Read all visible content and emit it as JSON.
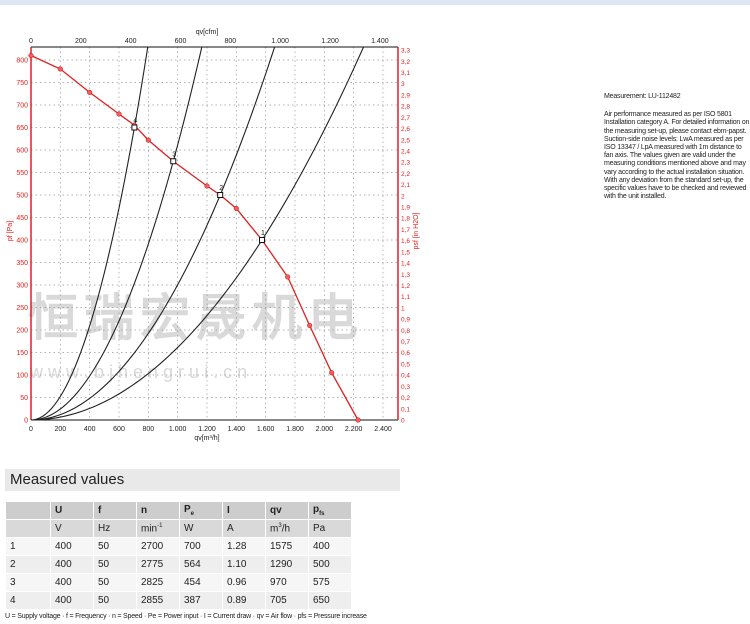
{
  "chart_data": {
    "type": "line",
    "x_label_bottom": "qv[m³/h]",
    "x_label_top": "qv[cfm]",
    "y_label_left": "pf [Pa]",
    "y_label_right": "psf [in H2O]",
    "xlim": [
      0,
      2500
    ],
    "ylim": [
      0,
      830
    ],
    "x_ticks_bottom": [
      "0",
      "200",
      "400",
      "600",
      "800",
      "1.000",
      "1.200",
      "1.400",
      "1.600",
      "1.800",
      "2.000",
      "2.200",
      "2.400"
    ],
    "x_ticks_top": [
      "0",
      "200",
      "400",
      "600",
      "800",
      "1.000",
      "1.200",
      "1.400"
    ],
    "y_ticks_left": [
      "0",
      "50",
      "100",
      "150",
      "200",
      "250",
      "300",
      "350",
      "400",
      "450",
      "500",
      "550",
      "600",
      "650",
      "700",
      "750",
      "800"
    ],
    "y_ticks_right": [
      "0",
      "0,1",
      "0,2",
      "0,3",
      "0,4",
      "0,5",
      "0,6",
      "0,7",
      "0,8",
      "0,9",
      "1",
      "1,1",
      "1,2",
      "1,3",
      "1,4",
      "1,5",
      "1,6",
      "1,7",
      "1,8",
      "1,9",
      "2",
      "2,1",
      "2,2",
      "2,3",
      "2,4",
      "2,5",
      "2,6",
      "2,7",
      "2,8",
      "2,9",
      "3",
      "3,1",
      "3,2",
      "3,3"
    ],
    "grid": true,
    "colors": {
      "fan_curve": "#e02020",
      "system_curves": "#222222",
      "grid": "#999999"
    },
    "fan_curve": {
      "x": [
        0,
        200,
        400,
        600,
        705,
        800,
        970,
        1200,
        1290,
        1400,
        1575,
        1750,
        1900,
        2050,
        2230
      ],
      "y": [
        810,
        780,
        728,
        680,
        655,
        622,
        575,
        520,
        500,
        470,
        400,
        318,
        210,
        105,
        0
      ]
    },
    "operating_points": [
      {
        "label": "1",
        "qv": 1575,
        "p": 400
      },
      {
        "label": "2",
        "qv": 1290,
        "p": 500
      },
      {
        "label": "3",
        "qv": 970,
        "p": 575
      },
      {
        "label": "4",
        "qv": 705,
        "p": 650
      }
    ]
  },
  "watermark": {
    "text": "恒瑞宏晟机电",
    "url": "w w w . b j h e n g r u i . c n"
  },
  "info": {
    "measurement": "Measurement: LU-112482",
    "description": "Air performance measured as per ISO 5801 Installation category A. For detailed information on the measuring set-up, please contact ebm-papst. Suction-side noise levels: LwA measured as per ISO 13347 / LpA measured with 1m distance to fan axis. The values given are valid under the measuring conditions mentioned above and may vary according to the actual installation situation. With any deviation from the standard set-up, the specific values have to be checked and reviewed with the unit installed."
  },
  "table": {
    "title": "Measured values",
    "headers": [
      "",
      "U",
      "f",
      "n",
      "P",
      "I",
      "qv",
      "p"
    ],
    "header_subs": {
      "P": "e",
      "p": "fs"
    },
    "units": [
      "",
      "V",
      "Hz",
      "min",
      "W",
      "A",
      "m",
      "Pa"
    ],
    "unit_sups": {
      "min": "-1"
    },
    "unit_qv_rest": "/h",
    "unit_qv_sup": "3",
    "rows": [
      [
        "1",
        "400",
        "50",
        "2700",
        "700",
        "1.28",
        "1575",
        "400"
      ],
      [
        "2",
        "400",
        "50",
        "2775",
        "564",
        "1.10",
        "1290",
        "500"
      ],
      [
        "3",
        "400",
        "50",
        "2825",
        "454",
        "0.96",
        "970",
        "575"
      ],
      [
        "4",
        "400",
        "50",
        "2855",
        "387",
        "0.89",
        "705",
        "650"
      ]
    ],
    "legend": "U = Supply voltage · f = Frequency · n = Speed · Pe = Power input · I = Current draw · qv = Air flow · pfs = Pressure increase"
  }
}
